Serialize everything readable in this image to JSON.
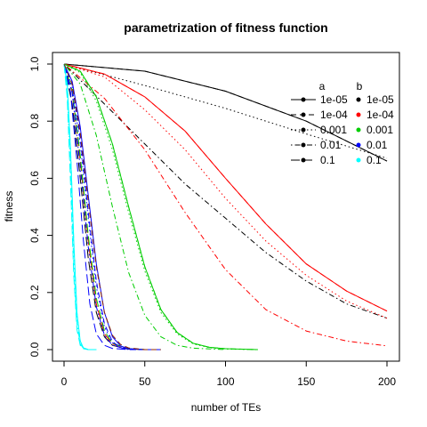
{
  "chart_data": {
    "type": "line",
    "title": "parametrization of fitness function",
    "xlabel": "number of TEs",
    "ylabel": "fitness",
    "xlim": [
      0,
      200
    ],
    "ylim": [
      0,
      1
    ],
    "x_ticks": [
      "0",
      "50",
      "100",
      "150",
      "200"
    ],
    "y_ticks": [
      "0.0",
      "0.2",
      "0.4",
      "0.6",
      "0.8",
      "1.0"
    ],
    "legend": {
      "position": "top-right",
      "a_title": "a",
      "b_title": "b",
      "a_entries": [
        {
          "label": "1e-05",
          "linestyle": "solid"
        },
        {
          "label": "1e-04",
          "linestyle": "dashed"
        },
        {
          "label": "0.001",
          "linestyle": "dotted"
        },
        {
          "label": "0.01",
          "linestyle": "dotdash"
        },
        {
          "label": "0.1",
          "linestyle": "longdash"
        }
      ],
      "b_entries": [
        {
          "label": "1e-05",
          "color": "#000000"
        },
        {
          "label": "1e-04",
          "color": "#ff0000"
        },
        {
          "label": "0.001",
          "color": "#00cd00"
        },
        {
          "label": "0.01",
          "color": "#0000ff"
        },
        {
          "label": "0.1",
          "color": "#00ffff"
        }
      ]
    },
    "series": [
      {
        "color": "#000000",
        "linestyle": "solid",
        "x": [
          0,
          50,
          100,
          150,
          200
        ],
        "y": [
          1.0,
          0.975,
          0.905,
          0.8,
          0.66
        ]
      },
      {
        "color": "#000000",
        "linestyle": "dashed",
        "x": [
          0,
          50,
          100,
          150,
          200
        ],
        "y": [
          1.0,
          0.975,
          0.905,
          0.8,
          0.66
        ]
      },
      {
        "color": "#000000",
        "linestyle": "dotted",
        "x": [
          0,
          50,
          100,
          150,
          200
        ],
        "y": [
          1.0,
          0.925,
          0.845,
          0.755,
          0.67
        ]
      },
      {
        "color": "#000000",
        "linestyle": "dotdash",
        "x": [
          0,
          25,
          50,
          75,
          100,
          125,
          150,
          175,
          200
        ],
        "y": [
          1.0,
          0.86,
          0.72,
          0.58,
          0.46,
          0.34,
          0.24,
          0.16,
          0.11
        ]
      },
      {
        "color": "#000000",
        "linestyle": "longdash",
        "x": [
          0,
          5,
          10,
          15,
          20,
          25,
          30,
          40,
          50
        ],
        "y": [
          1.0,
          0.86,
          0.6,
          0.32,
          0.13,
          0.045,
          0.015,
          0.002,
          0.0
        ]
      },
      {
        "color": "#ff0000",
        "linestyle": "solid",
        "x": [
          0,
          25,
          50,
          75,
          100,
          125,
          150,
          175,
          200
        ],
        "y": [
          1.0,
          0.965,
          0.885,
          0.765,
          0.6,
          0.44,
          0.3,
          0.205,
          0.135
        ]
      },
      {
        "color": "#ff0000",
        "linestyle": "dashed",
        "x": [
          0,
          25,
          50,
          75,
          100,
          125,
          150,
          175,
          200
        ],
        "y": [
          1.0,
          0.965,
          0.885,
          0.765,
          0.6,
          0.44,
          0.3,
          0.205,
          0.135
        ]
      },
      {
        "color": "#ff0000",
        "linestyle": "dotted",
        "x": [
          0,
          25,
          50,
          75,
          100,
          125,
          150,
          175,
          200
        ],
        "y": [
          1.0,
          0.955,
          0.84,
          0.7,
          0.53,
          0.38,
          0.26,
          0.17,
          0.11
        ]
      },
      {
        "color": "#ff0000",
        "linestyle": "dotdash",
        "x": [
          0,
          25,
          50,
          75,
          100,
          125,
          150,
          175,
          200
        ],
        "y": [
          1.0,
          0.88,
          0.7,
          0.48,
          0.28,
          0.14,
          0.065,
          0.03,
          0.013
        ]
      },
      {
        "color": "#ff0000",
        "linestyle": "longdash",
        "x": [
          0,
          5,
          10,
          15,
          20,
          25,
          30,
          40,
          50
        ],
        "y": [
          1.0,
          0.9,
          0.66,
          0.38,
          0.16,
          0.055,
          0.02,
          0.003,
          0.0
        ]
      },
      {
        "color": "#00cd00",
        "linestyle": "solid",
        "x": [
          0,
          10,
          20,
          30,
          40,
          50,
          60,
          70,
          80,
          90,
          100,
          120
        ],
        "y": [
          1.0,
          0.975,
          0.885,
          0.72,
          0.5,
          0.29,
          0.14,
          0.06,
          0.022,
          0.008,
          0.003,
          0.0
        ]
      },
      {
        "color": "#00cd00",
        "linestyle": "dashed",
        "x": [
          0,
          10,
          20,
          30,
          40,
          50,
          60,
          70,
          80,
          90,
          100,
          120
        ],
        "y": [
          1.0,
          0.975,
          0.885,
          0.72,
          0.5,
          0.29,
          0.14,
          0.06,
          0.022,
          0.008,
          0.003,
          0.0
        ]
      },
      {
        "color": "#00cd00",
        "linestyle": "dotted",
        "x": [
          0,
          10,
          20,
          30,
          40,
          50,
          60,
          70,
          80,
          90,
          100,
          120
        ],
        "y": [
          1.0,
          0.97,
          0.87,
          0.7,
          0.48,
          0.275,
          0.13,
          0.055,
          0.02,
          0.007,
          0.002,
          0.0
        ]
      },
      {
        "color": "#00cd00",
        "linestyle": "dotdash",
        "x": [
          0,
          10,
          20,
          30,
          40,
          50,
          60,
          70,
          80,
          100
        ],
        "y": [
          1.0,
          0.93,
          0.75,
          0.5,
          0.27,
          0.12,
          0.045,
          0.015,
          0.005,
          0.0
        ]
      },
      {
        "color": "#00cd00",
        "linestyle": "longdash",
        "x": [
          0,
          5,
          10,
          15,
          20,
          25,
          30,
          40,
          50
        ],
        "y": [
          1.0,
          0.91,
          0.68,
          0.4,
          0.18,
          0.065,
          0.022,
          0.003,
          0.0
        ]
      },
      {
        "color": "#0000ff",
        "linestyle": "solid",
        "x": [
          0,
          5,
          10,
          15,
          20,
          25,
          30,
          35,
          40,
          50,
          60
        ],
        "y": [
          1.0,
          0.94,
          0.78,
          0.54,
          0.3,
          0.13,
          0.045,
          0.013,
          0.003,
          0.0,
          0.0
        ]
      },
      {
        "color": "#0000ff",
        "linestyle": "dashed",
        "x": [
          0,
          5,
          10,
          15,
          20,
          25,
          30,
          35,
          40,
          50
        ],
        "y": [
          1.0,
          0.93,
          0.74,
          0.48,
          0.24,
          0.09,
          0.028,
          0.007,
          0.0,
          0.0
        ]
      },
      {
        "color": "#0000ff",
        "linestyle": "dotted",
        "x": [
          0,
          5,
          10,
          15,
          20,
          25,
          30,
          35,
          40,
          50
        ],
        "y": [
          1.0,
          0.92,
          0.72,
          0.46,
          0.22,
          0.08,
          0.024,
          0.006,
          0.0,
          0.0
        ]
      },
      {
        "color": "#0000ff",
        "linestyle": "dotdash",
        "x": [
          0,
          5,
          10,
          15,
          20,
          25,
          30,
          40
        ],
        "y": [
          1.0,
          0.9,
          0.64,
          0.36,
          0.15,
          0.05,
          0.015,
          0.0
        ]
      },
      {
        "color": "#0000ff",
        "linestyle": "longdash",
        "x": [
          0,
          4,
          8,
          12,
          16,
          20,
          25,
          30,
          40
        ],
        "y": [
          1.0,
          0.9,
          0.66,
          0.38,
          0.16,
          0.055,
          0.015,
          0.004,
          0.0
        ]
      },
      {
        "color": "#00ffff",
        "linestyle": "solid",
        "x": [
          0,
          2,
          4,
          6,
          8,
          10,
          12,
          15,
          20
        ],
        "y": [
          1.0,
          0.93,
          0.7,
          0.38,
          0.13,
          0.03,
          0.006,
          0.0,
          0.0
        ]
      },
      {
        "color": "#00ffff",
        "linestyle": "dashed",
        "x": [
          0,
          2,
          4,
          6,
          8,
          10,
          12,
          15,
          20
        ],
        "y": [
          1.0,
          0.93,
          0.7,
          0.38,
          0.13,
          0.03,
          0.006,
          0.0,
          0.0
        ]
      },
      {
        "color": "#00ffff",
        "linestyle": "dotted",
        "x": [
          0,
          2,
          4,
          6,
          8,
          10,
          12,
          15,
          20
        ],
        "y": [
          1.0,
          0.92,
          0.68,
          0.36,
          0.12,
          0.028,
          0.005,
          0.0,
          0.0
        ]
      },
      {
        "color": "#00ffff",
        "linestyle": "dotdash",
        "x": [
          0,
          2,
          4,
          6,
          8,
          10,
          12,
          15,
          20
        ],
        "y": [
          1.0,
          0.9,
          0.62,
          0.3,
          0.09,
          0.02,
          0.004,
          0.0,
          0.0
        ]
      },
      {
        "color": "#00ffff",
        "linestyle": "longdash",
        "x": [
          0,
          2,
          4,
          6,
          8,
          10,
          12,
          15,
          20
        ],
        "y": [
          1.0,
          0.88,
          0.58,
          0.26,
          0.07,
          0.015,
          0.003,
          0.0,
          0.0
        ]
      },
      {
        "color": "#8b2500",
        "linestyle": "dashed",
        "x": [
          0,
          5,
          10,
          15,
          20,
          25,
          30,
          35,
          40,
          50,
          60
        ],
        "y": [
          1.0,
          0.93,
          0.76,
          0.52,
          0.29,
          0.13,
          0.05,
          0.018,
          0.006,
          0.0,
          0.0
        ]
      }
    ]
  }
}
